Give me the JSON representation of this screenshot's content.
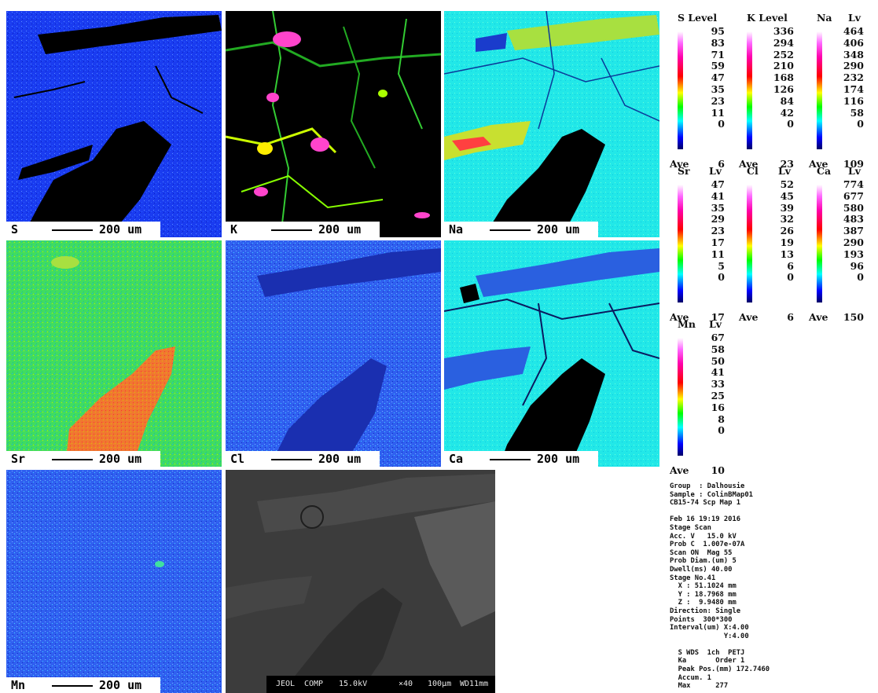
{
  "tiles": [
    {
      "element": "S",
      "scale": "200 um"
    },
    {
      "element": "K",
      "scale": "200 um"
    },
    {
      "element": "Na",
      "scale": "200 um"
    },
    {
      "element": "Sr",
      "scale": "200 um"
    },
    {
      "element": "Cl",
      "scale": "200 um"
    },
    {
      "element": "Ca",
      "scale": "200 um"
    },
    {
      "element": "Mn",
      "scale": "200 um"
    }
  ],
  "sem_info": {
    "brand": "JEOL",
    "mode": "COMP",
    "kv": "15.0kV",
    "mag": "×40",
    "scale": "100μm",
    "wd": "WD11mm"
  },
  "legends": [
    {
      "title": "S Level",
      "ticks": [
        "95",
        "83",
        "71",
        "59",
        "47",
        "35",
        "23",
        "11",
        "0"
      ],
      "ave_label": "Ave",
      "ave": "6"
    },
    {
      "title": "K Level",
      "ticks": [
        "336",
        "294",
        "252",
        "210",
        "168",
        "126",
        "84",
        "42",
        "0"
      ],
      "ave_label": "Ave",
      "ave": "23"
    },
    {
      "title": "Na",
      "title2": "Lv",
      "ticks": [
        "464",
        "406",
        "348",
        "290",
        "232",
        "174",
        "116",
        "58",
        "0"
      ],
      "ave_label": "Ave",
      "ave": "109"
    },
    {
      "title": "Sr",
      "title2": "Lv",
      "ticks": [
        "47",
        "41",
        "35",
        "29",
        "23",
        "17",
        "11",
        "5",
        "0"
      ],
      "ave_label": "Ave",
      "ave": "17"
    },
    {
      "title": "Cl",
      "title2": "Lv",
      "ticks": [
        "52",
        "45",
        "39",
        "32",
        "26",
        "19",
        "13",
        "6",
        "0"
      ],
      "ave_label": "Ave",
      "ave": "6"
    },
    {
      "title": "Ca",
      "title2": "Lv",
      "ticks": [
        "774",
        "677",
        "580",
        "483",
        "387",
        "290",
        "193",
        "96",
        "0"
      ],
      "ave_label": "Ave",
      "ave": "150"
    },
    {
      "title": "Mn",
      "title2": "Lv",
      "ticks": [
        "67",
        "58",
        "50",
        "41",
        "33",
        "25",
        "16",
        "8",
        "0"
      ],
      "ave_label": "Ave",
      "ave": "10"
    }
  ],
  "meta": {
    "lines": [
      "Group  : Dalhousie",
      "Sample : ColinBMap01",
      "CB15-74 Scp Map 1",
      "",
      "Feb 16 19:19 2016",
      "Stage Scan",
      "Acc. V   15.0 kV",
      "Prob C  1.007e-07A",
      "Scan ON  Mag 55",
      "Prob Diam.(um) 5",
      "Dwell(ms) 40.00",
      "Stage No.41",
      "  X : 51.1024 mm",
      "  Y : 18.7968 mm",
      "  Z :  9.9480 mm",
      "Direction: Single",
      "Points  300*300",
      "Interval(um) X:4.00",
      "             Y:4.00",
      "",
      "  S WDS  1ch  PETJ",
      "  Ka       Order 1",
      "  Peak Pos.(mm) 172.7460",
      "  Accum. 1",
      "  Max      277"
    ]
  }
}
